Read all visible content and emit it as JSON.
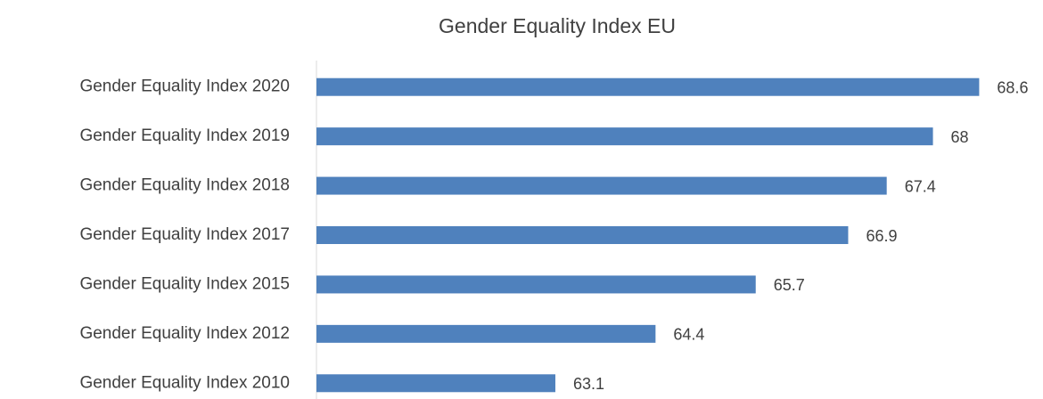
{
  "chart_data": {
    "type": "hbar",
    "title": "Gender Equality Index EU",
    "categories": [
      "Gender Equality Index 2020",
      "Gender Equality Index 2019",
      "Gender Equality Index 2018",
      "Gender Equality Index 2017",
      "Gender Equality Index 2015",
      "Gender Equality Index 2012",
      "Gender Equality Index 2010"
    ],
    "values": [
      68.6,
      68,
      67.4,
      66.9,
      65.7,
      64.4,
      63.1
    ],
    "color": "#4f81bd",
    "xlim": [
      60,
      69
    ]
  }
}
